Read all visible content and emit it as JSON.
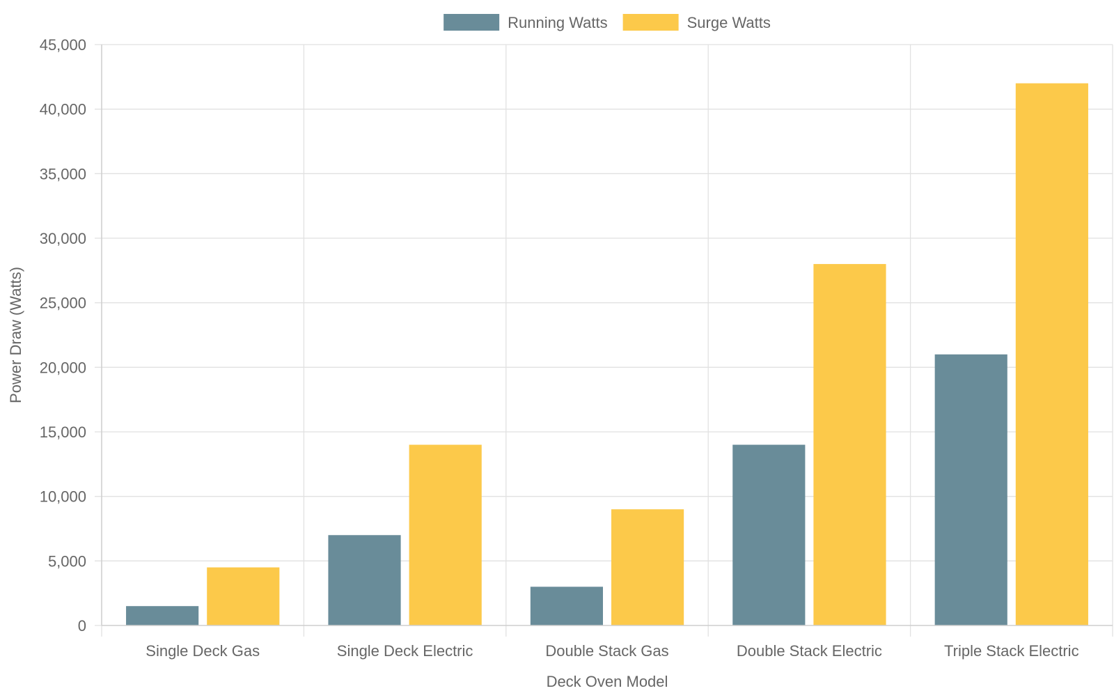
{
  "chart_data": {
    "type": "bar",
    "categories": [
      "Single Deck Gas",
      "Single Deck Electric",
      "Double Stack Gas",
      "Double Stack Electric",
      "Triple Stack Electric"
    ],
    "series": [
      {
        "name": "Running Watts",
        "values": [
          1500,
          7000,
          3000,
          14000,
          21000
        ],
        "color": "#698c99"
      },
      {
        "name": "Surge Watts",
        "values": [
          4500,
          14000,
          9000,
          28000,
          42000
        ],
        "color": "#fcc94a"
      }
    ],
    "xlabel": "Deck Oven Model",
    "ylabel": "Power Draw (Watts)",
    "ylim": [
      0,
      45000
    ],
    "yticks": [
      0,
      5000,
      10000,
      15000,
      20000,
      25000,
      30000,
      35000,
      40000,
      45000
    ],
    "ytick_labels": [
      "0",
      "5,000",
      "10,000",
      "15,000",
      "20,000",
      "25,000",
      "30,000",
      "35,000",
      "40,000",
      "45,000"
    ],
    "grid": true,
    "legend_position": "top-center"
  }
}
